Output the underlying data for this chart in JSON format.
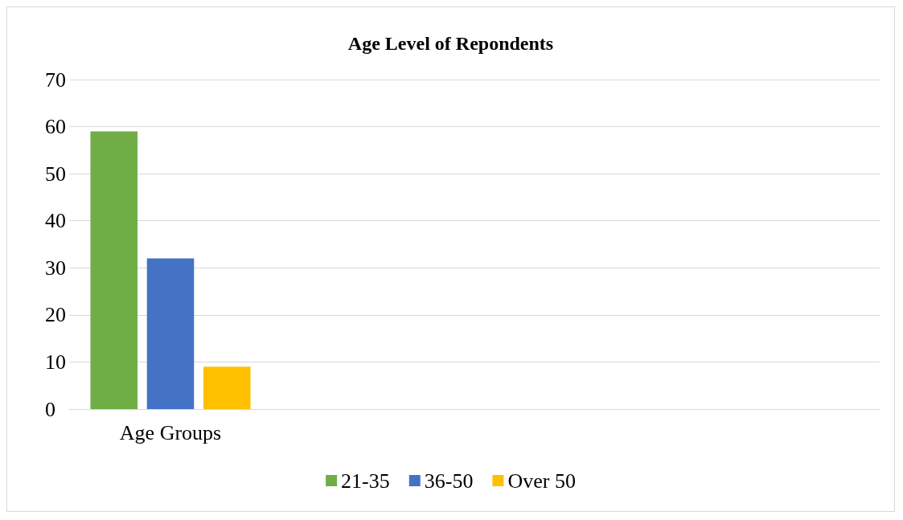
{
  "chart_data": {
    "type": "bar",
    "title": "Age Level of Repondents",
    "categories": [
      "Age Groups",
      null,
      null,
      null
    ],
    "series": [
      {
        "name": "21-35",
        "color": "#70ad47",
        "values": [
          59,
          null,
          null,
          null
        ]
      },
      {
        "name": "36-50",
        "color": "#4472c4",
        "values": [
          32,
          null,
          null,
          null
        ]
      },
      {
        "name": "Over 50",
        "color": "#ffc000",
        "values": [
          9,
          null,
          null,
          null
        ]
      }
    ],
    "ylim": [
      0,
      70
    ],
    "yticks": [
      0,
      10,
      20,
      30,
      40,
      50,
      60,
      70
    ],
    "grid": "y",
    "legend": "bottom"
  }
}
